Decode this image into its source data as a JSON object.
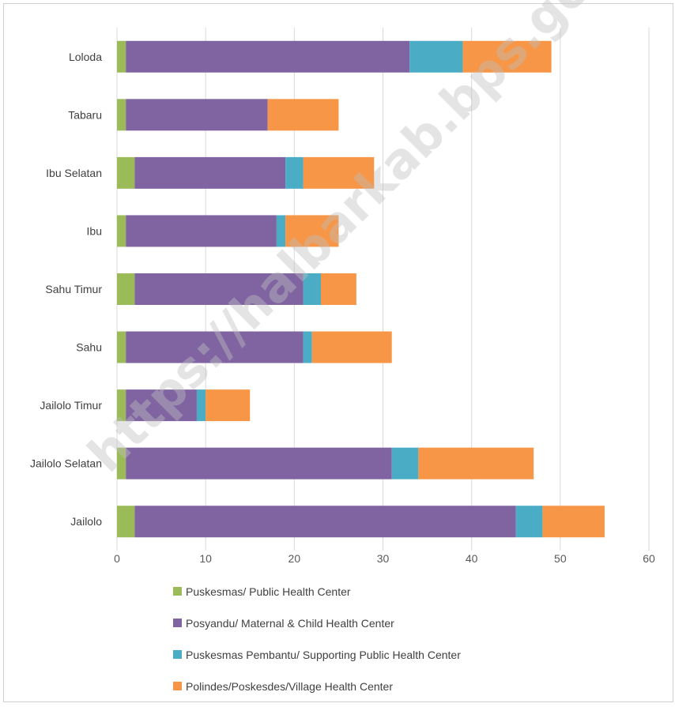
{
  "chart_data": {
    "type": "bar",
    "orientation": "horizontal",
    "stacked": true,
    "categories": [
      "Loloda",
      "Tabaru",
      "Ibu Selatan",
      "Ibu",
      "Sahu Timur",
      "Sahu",
      "Jailolo Timur",
      "Jailolo Selatan",
      "Jailolo"
    ],
    "series": [
      {
        "name": "Puskesmas/ Public Health Center",
        "color": "#9bbb59",
        "values": [
          1,
          1,
          2,
          1,
          2,
          1,
          1,
          1,
          2
        ]
      },
      {
        "name": "Posyandu/ Maternal & Child Health Center",
        "color": "#8064a2",
        "values": [
          32,
          16,
          17,
          17,
          19,
          20,
          8,
          30,
          43
        ]
      },
      {
        "name": "Puskesmas Pembantu/ Supporting Public Health Center",
        "color": "#4bacc6",
        "values": [
          6,
          0,
          2,
          1,
          2,
          1,
          1,
          3,
          3
        ]
      },
      {
        "name": "Polindes/Poskesdes/Village Health Center",
        "color": "#f79646",
        "values": [
          10,
          8,
          8,
          6,
          4,
          9,
          5,
          13,
          7
        ]
      }
    ],
    "xlim": [
      0,
      60
    ],
    "xticks": [
      "0",
      "10",
      "20",
      "30",
      "40",
      "50",
      "60"
    ],
    "grid": true,
    "legend_position": "bottom",
    "watermark": "https://halbarkab.bps.go.id"
  }
}
